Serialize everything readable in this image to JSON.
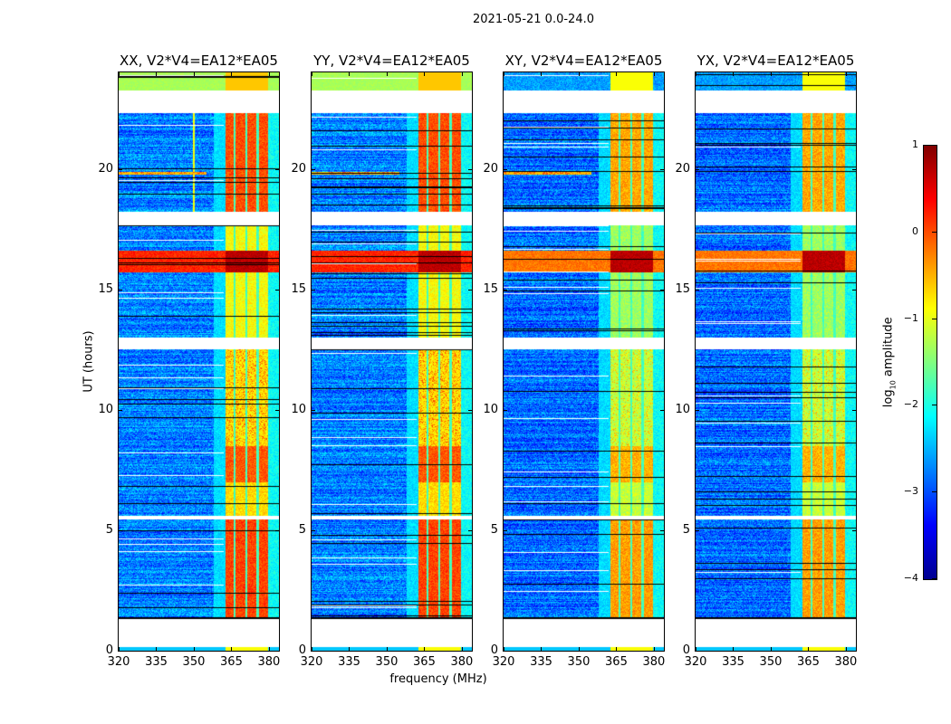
{
  "chart_data": {
    "type": "heatmap",
    "title": "2021-05-21 0.0-24.0",
    "xlabel": "frequency (MHz)",
    "ylabel": "UT (hours)",
    "xlim": [
      320,
      384
    ],
    "ylim": [
      0,
      24
    ],
    "xticks": [
      "320",
      "335",
      "350",
      "365",
      "380"
    ],
    "xtick_values": [
      320,
      335,
      350,
      365,
      380
    ],
    "yticks": [
      "0",
      "5",
      "10",
      "15",
      "20"
    ],
    "ytick_values": [
      0,
      5,
      10,
      15,
      20
    ],
    "panels": [
      {
        "title": "XX, V2*V4=EA12*EA05",
        "pol": "XX",
        "cross": false
      },
      {
        "title": "YY, V2*V4=EA12*EA05",
        "pol": "YY",
        "cross": false
      },
      {
        "title": "XY, V2*V4=EA12*EA05",
        "pol": "XY",
        "cross": true
      },
      {
        "title": "YX, V2*V4=EA12*EA05",
        "pol": "YX",
        "cross": true
      }
    ],
    "flagged_gaps_hours": [
      [
        0.15,
        1.3
      ],
      [
        5.45,
        5.6
      ],
      [
        12.5,
        13.0
      ],
      [
        17.65,
        18.2
      ],
      [
        22.3,
        23.25
      ]
    ],
    "rfi_band_mhz": [
      362,
      380
    ],
    "strong_rfi_hours": [
      15.7,
      16.6
    ],
    "colorbar": {
      "label_main": "log",
      "label_sub": "10",
      "label_rest": " amplitude",
      "range": [
        -4,
        1
      ],
      "ticks": [
        "1",
        "0",
        "−1",
        "−2",
        "−3",
        "−4"
      ],
      "tick_values": [
        1,
        0,
        -1,
        -2,
        -3,
        -4
      ],
      "colormap": "jet"
    }
  }
}
